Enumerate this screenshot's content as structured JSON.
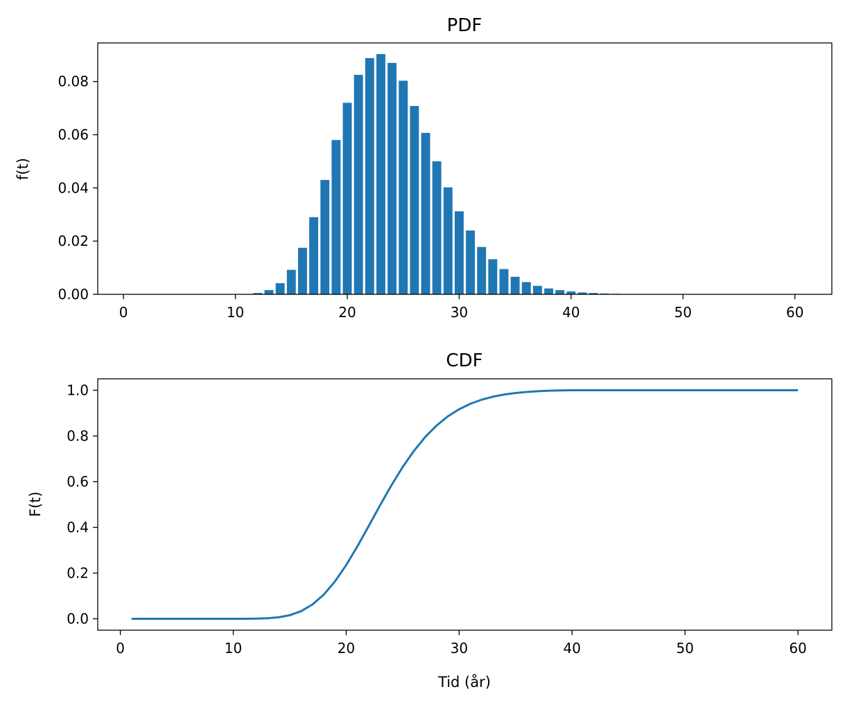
{
  "chart_data": [
    {
      "type": "bar",
      "title": "PDF",
      "xlabel": "",
      "ylabel": "f(t)",
      "xlim": [
        -2.3,
        63.3
      ],
      "ylim": [
        0,
        0.0945
      ],
      "xticks": [
        0,
        10,
        20,
        30,
        40,
        50,
        60
      ],
      "yticks": [
        0.0,
        0.02,
        0.04,
        0.06,
        0.08
      ],
      "ytick_labels": [
        "0.00",
        "0.02",
        "0.04",
        "0.06",
        "0.08"
      ],
      "color": "#1f77b4",
      "x": [
        0,
        1,
        2,
        3,
        4,
        5,
        6,
        7,
        8,
        9,
        10,
        11,
        12,
        13,
        14,
        15,
        16,
        17,
        18,
        19,
        20,
        21,
        22,
        23,
        24,
        25,
        26,
        27,
        28,
        29,
        30,
        31,
        32,
        33,
        34,
        35,
        36,
        37,
        38,
        39,
        40,
        41,
        42,
        43,
        44,
        45,
        46,
        47,
        48,
        49,
        50,
        51,
        52,
        53,
        54,
        55,
        56,
        57,
        58,
        59,
        60
      ],
      "values": [
        0,
        0,
        0,
        0,
        0,
        0,
        0,
        0,
        0,
        0,
        0,
        0.0001,
        0.0005,
        0.0016,
        0.0042,
        0.0092,
        0.0175,
        0.029,
        0.043,
        0.058,
        0.072,
        0.0825,
        0.0888,
        0.0903,
        0.087,
        0.0803,
        0.0708,
        0.0607,
        0.05,
        0.0402,
        0.0312,
        0.024,
        0.0178,
        0.0132,
        0.0095,
        0.0066,
        0.0046,
        0.0032,
        0.0022,
        0.0016,
        0.0011,
        0.0007,
        0.0005,
        0.0003,
        0.0002,
        0.0001,
        0,
        0,
        0,
        0,
        0,
        0,
        0,
        0,
        0,
        0,
        0,
        0,
        0,
        0,
        0
      ]
    },
    {
      "type": "line",
      "title": "CDF",
      "xlabel": "Tid (år)",
      "ylabel": "F(t)",
      "xlim": [
        -2,
        63
      ],
      "ylim": [
        -0.05,
        1.05
      ],
      "xticks": [
        0,
        10,
        20,
        30,
        40,
        50,
        60
      ],
      "yticks": [
        0.0,
        0.2,
        0.4,
        0.6,
        0.8,
        1.0
      ],
      "ytick_labels": [
        "0.0",
        "0.2",
        "0.4",
        "0.6",
        "0.8",
        "1.0"
      ],
      "color": "#1f77b4",
      "x": [
        1,
        2,
        3,
        4,
        5,
        6,
        7,
        8,
        9,
        10,
        11,
        12,
        13,
        14,
        15,
        16,
        17,
        18,
        19,
        20,
        21,
        22,
        23,
        24,
        25,
        26,
        27,
        28,
        29,
        30,
        31,
        32,
        33,
        34,
        35,
        36,
        37,
        38,
        39,
        40,
        41,
        42,
        43,
        44,
        45,
        46,
        47,
        48,
        49,
        50,
        51,
        52,
        53,
        54,
        55,
        56,
        57,
        58,
        59,
        60
      ],
      "y": [
        0,
        0,
        0,
        0,
        0,
        0,
        0,
        0,
        0,
        0,
        0.0001,
        0.0006,
        0.0022,
        0.0064,
        0.0156,
        0.0331,
        0.0621,
        0.1051,
        0.1631,
        0.2351,
        0.3176,
        0.4064,
        0.4967,
        0.5837,
        0.664,
        0.7348,
        0.7955,
        0.8455,
        0.8857,
        0.9169,
        0.9409,
        0.9587,
        0.9719,
        0.9814,
        0.988,
        0.9926,
        0.9958,
        0.998,
        0.9994,
        1,
        1,
        1,
        1,
        1,
        1,
        1,
        1,
        1,
        1,
        1,
        1,
        1,
        1,
        1,
        1,
        1,
        1,
        1,
        1,
        1
      ]
    }
  ]
}
